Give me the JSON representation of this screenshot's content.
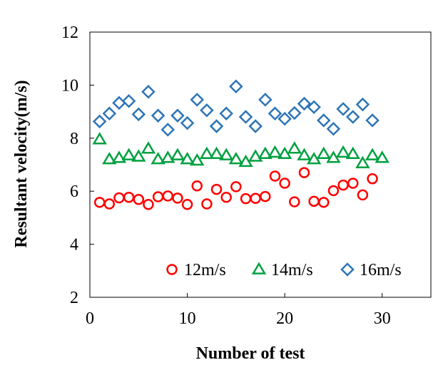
{
  "chart_data": {
    "type": "scatter",
    "title": "",
    "xlabel": "Number of test",
    "ylabel": "Resultant velocity(m/s)",
    "xlim": [
      0,
      35
    ],
    "ylim": [
      2,
      12
    ],
    "xticks": [
      0,
      10,
      20,
      30
    ],
    "yticks": [
      2,
      4,
      6,
      8,
      10,
      12
    ],
    "xtick_labels": [
      "0",
      "10",
      "20",
      "30"
    ],
    "ytick_labels": [
      "2",
      "4",
      "6",
      "8",
      "10",
      "12"
    ],
    "grid": false,
    "legend_position": "bottom-inside",
    "series": [
      {
        "name": "12m/s",
        "marker": "circle",
        "color": "#ff0000",
        "x": [
          1,
          2,
          3,
          4,
          5,
          6,
          7,
          8,
          9,
          10,
          11,
          12,
          13,
          14,
          15,
          16,
          17,
          18,
          19,
          20,
          21,
          22,
          23,
          24,
          25,
          26,
          27,
          28,
          29
        ],
        "y": [
          5.58,
          5.52,
          5.75,
          5.77,
          5.69,
          5.5,
          5.79,
          5.82,
          5.74,
          5.5,
          6.2,
          5.52,
          6.07,
          5.77,
          6.17,
          5.72,
          5.73,
          5.8,
          6.57,
          6.3,
          5.6,
          6.7,
          5.62,
          5.58,
          6.02,
          6.23,
          6.3,
          5.86,
          6.47
        ]
      },
      {
        "name": "14m/s",
        "marker": "triangle",
        "color": "#00a040",
        "x": [
          1,
          2,
          3,
          4,
          5,
          6,
          7,
          8,
          9,
          10,
          11,
          12,
          13,
          14,
          15,
          16,
          17,
          18,
          19,
          20,
          21,
          22,
          23,
          24,
          25,
          26,
          27,
          28,
          29,
          30
        ],
        "y": [
          7.95,
          7.2,
          7.25,
          7.35,
          7.3,
          7.6,
          7.2,
          7.25,
          7.35,
          7.2,
          7.15,
          7.4,
          7.4,
          7.35,
          7.2,
          7.1,
          7.3,
          7.4,
          7.45,
          7.4,
          7.6,
          7.35,
          7.2,
          7.4,
          7.25,
          7.45,
          7.4,
          7.05,
          7.35,
          7.25
        ]
      },
      {
        "name": "16m/s",
        "marker": "diamond",
        "color": "#2e75b6",
        "x": [
          1,
          2,
          3,
          4,
          5,
          6,
          7,
          8,
          9,
          10,
          11,
          12,
          13,
          14,
          15,
          16,
          17,
          18,
          19,
          20,
          21,
          22,
          23,
          24,
          25,
          26,
          27,
          28,
          29
        ],
        "y": [
          8.63,
          8.93,
          9.33,
          9.4,
          8.9,
          9.75,
          8.85,
          8.32,
          8.85,
          8.57,
          9.45,
          9.05,
          8.45,
          8.93,
          9.95,
          8.8,
          8.45,
          9.45,
          8.93,
          8.73,
          8.95,
          9.3,
          9.17,
          8.67,
          8.35,
          9.1,
          8.8,
          9.27,
          8.67
        ]
      }
    ]
  }
}
